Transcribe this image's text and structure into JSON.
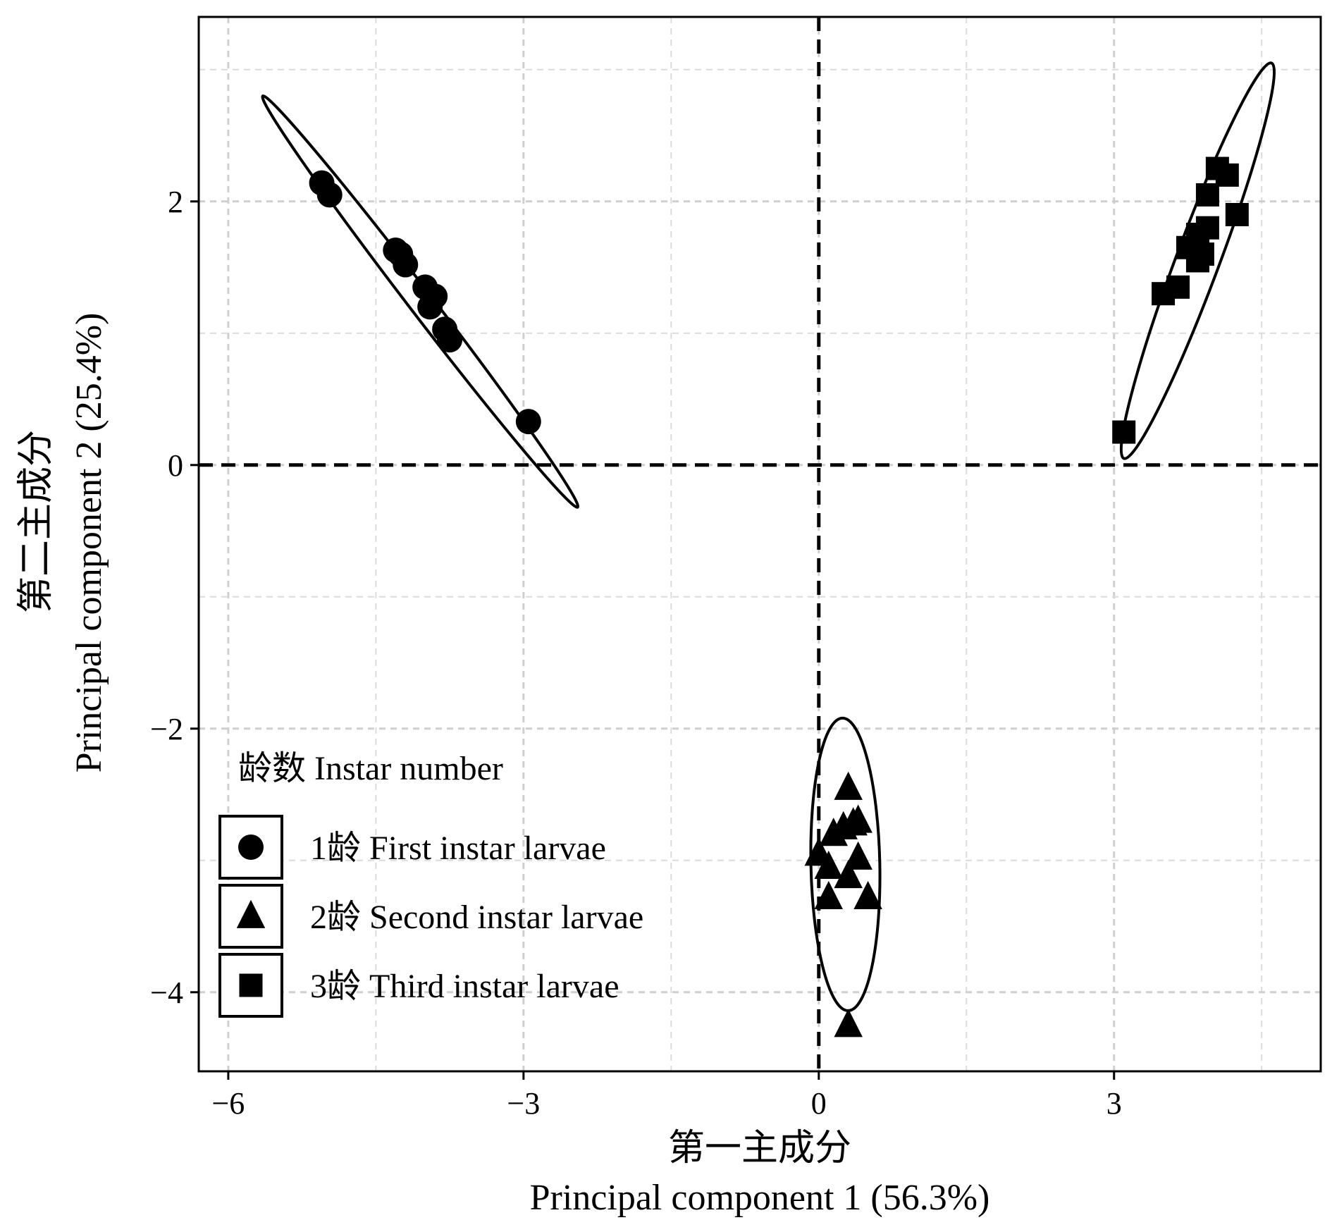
{
  "chart_data": {
    "type": "scatter",
    "x_title_cn": "第一主成分",
    "x_title_en": "Principal component 1 (56.3%)",
    "y_title_cn": "第二主成分",
    "y_title_en": "Principal component 2 (25.4%)",
    "xlim": [
      -6.3,
      5.1
    ],
    "ylim": [
      -4.6,
      3.4
    ],
    "x_ticks": [
      -6,
      -3,
      0,
      3
    ],
    "x_tick_labels": [
      "−6",
      "−3",
      "0",
      "3"
    ],
    "y_ticks": [
      2,
      0,
      -2,
      -4
    ],
    "y_tick_labels": [
      "2",
      "0",
      "−2",
      "−4"
    ],
    "grid": true,
    "reference_lines": {
      "x": 0,
      "y": 0,
      "style": "dashed"
    },
    "legend": {
      "title": "龄数 Instar number",
      "placement": "bottom-left",
      "entries": [
        {
          "label": "1龄  First instar larvae",
          "shape": "circle"
        },
        {
          "label": "2龄  Second instar larvae",
          "shape": "triangle"
        },
        {
          "label": "3龄 Third instar larvae",
          "shape": "square"
        }
      ]
    },
    "series": [
      {
        "shape": "circle",
        "points": [
          [
            -5.05,
            2.14
          ],
          [
            -4.97,
            2.05
          ],
          [
            -4.3,
            1.63
          ],
          [
            -4.25,
            1.6
          ],
          [
            -4.2,
            1.52
          ],
          [
            -4.0,
            1.35
          ],
          [
            -3.9,
            1.28
          ],
          [
            -3.95,
            1.2
          ],
          [
            -3.8,
            1.03
          ],
          [
            -3.75,
            0.95
          ],
          [
            -2.95,
            0.33
          ]
        ],
        "ellipse": {
          "center": [
            -4.05,
            1.24
          ],
          "end_a": [
            -5.65,
            2.8
          ],
          "end_b": [
            -2.45,
            -0.32
          ],
          "minor_half": 0.12
        }
      },
      {
        "shape": "triangle",
        "points": [
          [
            0.3,
            -2.45
          ],
          [
            0.25,
            -2.75
          ],
          [
            0.35,
            -2.72
          ],
          [
            0.4,
            -2.7
          ],
          [
            0.0,
            -2.95
          ],
          [
            0.15,
            -2.8
          ],
          [
            0.4,
            -2.98
          ],
          [
            0.1,
            -3.05
          ],
          [
            0.3,
            -3.12
          ],
          [
            0.1,
            -3.28
          ],
          [
            0.5,
            -3.28
          ],
          [
            0.3,
            -4.25
          ]
        ],
        "ellipse": {
          "center": [
            0.27,
            -3.03
          ],
          "end_a": [
            0.24,
            -1.92
          ],
          "end_b": [
            0.3,
            -4.14
          ],
          "minor_half": 0.35
        }
      },
      {
        "shape": "square",
        "points": [
          [
            4.05,
            2.25
          ],
          [
            4.15,
            2.2
          ],
          [
            3.95,
            2.05
          ],
          [
            4.25,
            1.9
          ],
          [
            3.95,
            1.8
          ],
          [
            3.85,
            1.75
          ],
          [
            3.75,
            1.65
          ],
          [
            3.85,
            1.55
          ],
          [
            3.9,
            1.6
          ],
          [
            3.65,
            1.35
          ],
          [
            3.5,
            1.3
          ],
          [
            3.1,
            0.25
          ]
        ],
        "ellipse": {
          "center": [
            3.9,
            1.55
          ],
          "end_a": [
            4.6,
            3.05
          ],
          "end_b": [
            3.1,
            0.05
          ],
          "minor_half": 0.22
        }
      }
    ]
  }
}
